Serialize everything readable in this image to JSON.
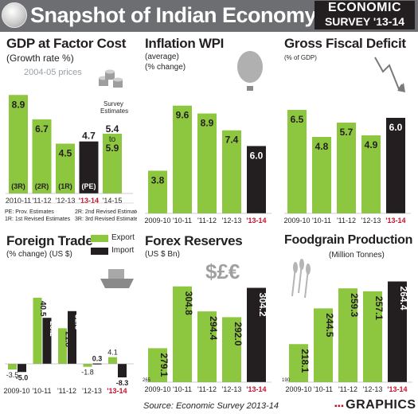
{
  "header": {
    "title": "Snapshot of Indian Economy",
    "badge_line1": "ECONOMIC",
    "badge_line2": "SURVEY '13-14"
  },
  "colors": {
    "green": "#8dc63f",
    "dark": "#231f20",
    "red": "#c8102e",
    "panel_bg": "#ffffff"
  },
  "icons": [
    "rupee-coin-icon",
    "coins-stack-icon",
    "hot-air-balloon-icon",
    "falling-arrow-icon",
    "cargo-ship-icon",
    "currency-symbols-icon",
    "wheat-icon"
  ],
  "panels": {
    "gdp": {
      "title": "GDP at Factor Cost",
      "sub1": "(Growth rate %)",
      "sub2": "2004-05 prices",
      "survey_label_1": "Survey",
      "survey_label_2": "Estimates",
      "notes": [
        "PE: Prov. Estimates",
        "1R: 1st Revised Estimates",
        "2R: 2nd Revised Estimates",
        "3R: 3rd Revised Estimates"
      ]
    },
    "inflation": {
      "title": "Inflation WPI",
      "sub1": "(average)",
      "sub2": "(% change)"
    },
    "fiscal": {
      "title": "Gross Fiscal Deficit",
      "sub1": "(% of GDP)"
    },
    "trade": {
      "title": "Foreign Trade",
      "sub1": "(% change)  (US $)",
      "legend_export": "Export",
      "legend_import": "Import"
    },
    "forex": {
      "title": "Forex Reserves",
      "sub1": "(US $ Bn)"
    },
    "foodgrain": {
      "title": "Foodgrain Production",
      "sub1": "(Million Tonnes)"
    }
  },
  "footer": {
    "source": "Source: Economic Survey 2013-14",
    "logo": "GRAPHICS"
  },
  "chart_data": [
    {
      "id": "gdp",
      "type": "bar",
      "title": "GDP at Factor Cost",
      "categories": [
        "2010-11",
        "'11-12",
        "'12-13",
        "'13-14",
        "'14-15"
      ],
      "values": [
        8.9,
        6.7,
        4.5,
        4.7,
        5.4
      ],
      "value_labels": [
        "8.9",
        "6.7",
        "4.5",
        "4.7",
        "5.4 to 5.9"
      ],
      "range_high_last": 5.9,
      "status_labels": [
        "(3R)",
        "(2R)",
        "(1R)",
        "(PE)",
        ""
      ],
      "ylim": [
        0,
        10
      ]
    },
    {
      "id": "inflation",
      "type": "bar",
      "title": "Inflation WPI",
      "categories": [
        "2009-10",
        "'10-11",
        "'11-12",
        "'12-13",
        "'13-14"
      ],
      "values": [
        3.8,
        9.6,
        8.9,
        7.4,
        6.0
      ],
      "value_labels": [
        "3.8",
        "9.6",
        "8.9",
        "7.4",
        "6.0"
      ],
      "ylim": [
        0,
        10.5
      ]
    },
    {
      "id": "fiscal",
      "type": "bar",
      "title": "Gross Fiscal Deficit",
      "categories": [
        "2009-10",
        "'10-11",
        "'11-12",
        "'12-13",
        "'13-14"
      ],
      "values": [
        6.5,
        4.8,
        5.7,
        4.9,
        6.0
      ],
      "value_labels": [
        "6.5",
        "4.8",
        "5.7",
        "4.9",
        "6.0"
      ],
      "ylim": [
        0,
        7.5
      ]
    },
    {
      "id": "trade",
      "type": "bar",
      "title": "Foreign Trade",
      "categories": [
        "2009-10",
        "'10-11",
        "'11-12",
        "'12-13",
        "'13-14"
      ],
      "series": [
        {
          "name": "Export",
          "values": [
            -3.5,
            40.5,
            21.8,
            -1.8,
            4.1
          ],
          "labels": [
            "-3.5",
            "40.5",
            "21.8",
            "-1.8",
            "4.1"
          ]
        },
        {
          "name": "Import",
          "values": [
            -5.0,
            28.2,
            32.3,
            0.3,
            -8.3
          ],
          "labels": [
            "-5.0",
            "28.2",
            "32.3",
            "0.3",
            "-8.3"
          ]
        }
      ],
      "ylim": [
        -10,
        45
      ]
    },
    {
      "id": "forex",
      "type": "bar",
      "title": "Forex Reserves",
      "categories": [
        "2009-10",
        "'10-11",
        "'11-12",
        "'12-13",
        "'13-14"
      ],
      "values": [
        279.1,
        304.8,
        294.4,
        292.0,
        304.2
      ],
      "value_labels": [
        "279.1",
        "304.8",
        "294.4",
        "292.0",
        "304.2"
      ],
      "axis_min_label": "265",
      "ylim": [
        265,
        310
      ]
    },
    {
      "id": "foodgrain",
      "type": "bar",
      "title": "Foodgrain Production",
      "categories": [
        "2009-10",
        "'10-11",
        "'11-12",
        "'12-13",
        "'13-14"
      ],
      "values": [
        218.1,
        244.5,
        259.3,
        257.1,
        264.4
      ],
      "value_labels": [
        "218.1",
        "244.5",
        "259.3",
        "257.1",
        "264.4"
      ],
      "axis_min_label": "190",
      "ylim": [
        190,
        270
      ]
    }
  ]
}
